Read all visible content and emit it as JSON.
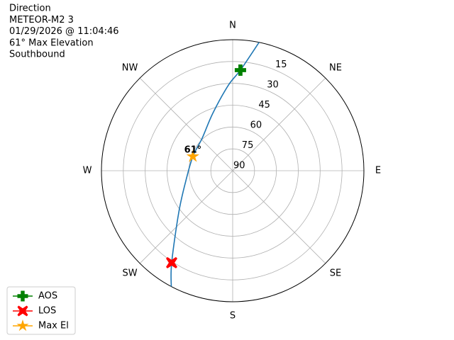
{
  "chart_data": {
    "type": "polar",
    "title_lines": [
      "Direction",
      "METEOR-M2 3",
      "01/29/2026 @ 11:04:46",
      "61° Max Elevation",
      "Southbound"
    ],
    "thetaticks": [
      {
        "value": 0,
        "label": "N"
      },
      {
        "value": 45,
        "label": "NE"
      },
      {
        "value": 90,
        "label": "E"
      },
      {
        "value": 135,
        "label": "SE"
      },
      {
        "value": 180,
        "label": "S"
      },
      {
        "value": 225,
        "label": "SW"
      },
      {
        "value": 270,
        "label": "W"
      },
      {
        "value": 315,
        "label": "NW"
      }
    ],
    "rlim": [
      90,
      0
    ],
    "rticks": [
      15,
      30,
      45,
      60,
      75,
      90
    ],
    "grid": true,
    "legend": "lower left",
    "series": [
      {
        "color": "#1f77b4",
        "marker": "line",
        "theta": [
          11.6,
          4.4,
          357.2,
          340.9,
          316.9,
          289.7,
          258.0,
          232.2,
          213.5,
          207.9
        ],
        "values": [
          0,
          20.7,
          31.1,
          48.3,
          59.4,
          61,
          57.2,
          43.2,
          14.2,
          0
        ]
      },
      {
        "name": "AOS",
        "color": "#008000",
        "marker": "P",
        "theta": [
          4.4
        ],
        "values": [
          20.7
        ]
      },
      {
        "name": "LOS",
        "color": "#ff0000",
        "marker": "X",
        "theta": [
          213.5
        ],
        "values": [
          14.2
        ]
      },
      {
        "name": "Max El",
        "color": "#ffa500",
        "marker": "*",
        "theta": [
          289.7
        ],
        "values": [
          61
        ]
      }
    ],
    "annotations": [
      {
        "text": "61°",
        "theta": 289.7,
        "r": 61
      }
    ]
  }
}
